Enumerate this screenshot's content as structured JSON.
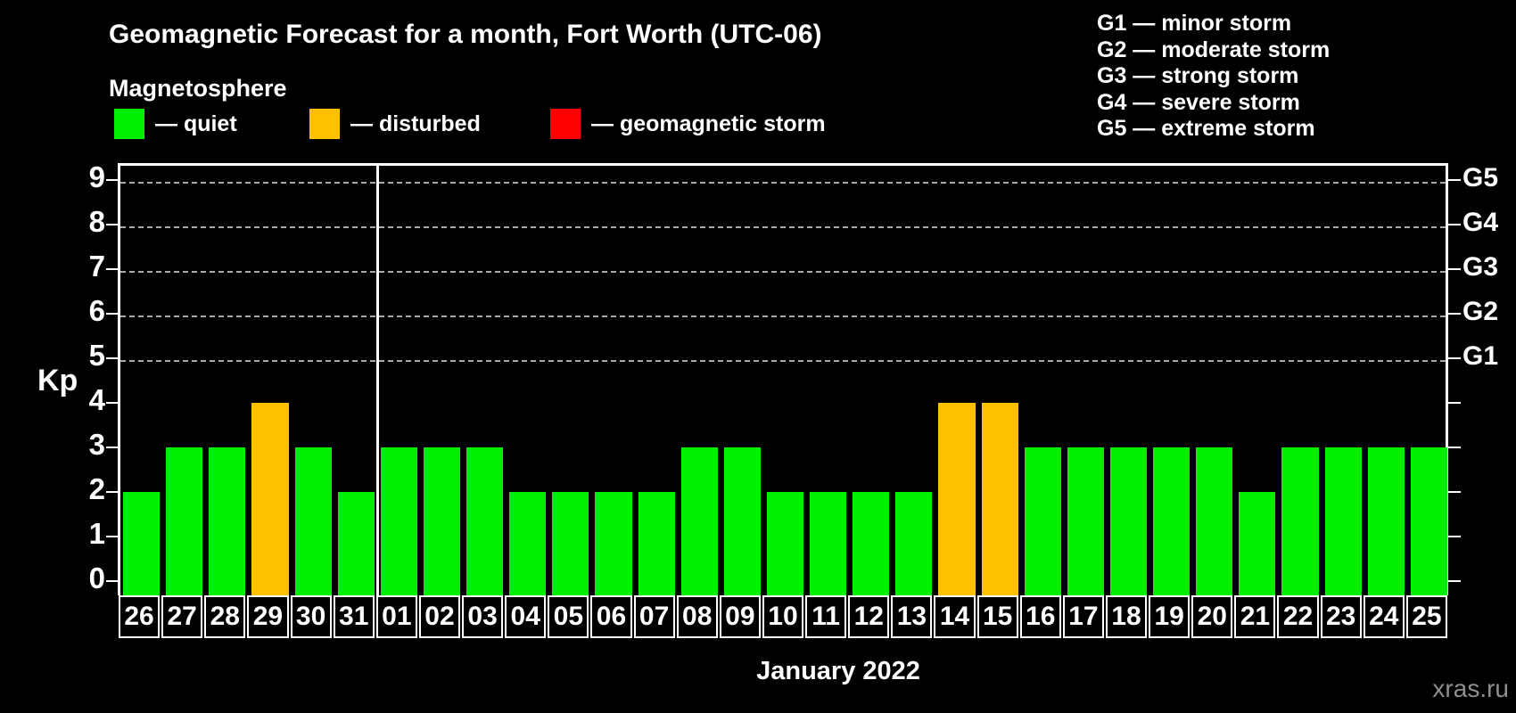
{
  "title": "Geomagnetic Forecast for a month, Fort Worth (UTC-06)",
  "subtitle": "Magnetosphere",
  "watermark": "xras.ru",
  "legend": {
    "items": [
      {
        "key": "quiet",
        "label": "— quiet",
        "color": "#00ee00"
      },
      {
        "key": "disturbed",
        "label": "— disturbed",
        "color": "#ffc000"
      },
      {
        "key": "storm",
        "label": "— geomagnetic storm",
        "color": "#ff0000"
      }
    ]
  },
  "g_scale_legend": [
    "G1 — minor storm",
    "G2 — moderate storm",
    "G3 — strong storm",
    "G4 — severe storm",
    "G5 — extreme storm"
  ],
  "chart_data": {
    "type": "bar",
    "title": "Geomagnetic Forecast for a month, Fort Worth (UTC-06)",
    "xlabel": "January 2022",
    "ylabel": "Kp",
    "ylim": [
      0,
      9.5
    ],
    "yticks": [
      0,
      1,
      2,
      3,
      4,
      5,
      6,
      7,
      8,
      9
    ],
    "gridlines_at": [
      5,
      6,
      7,
      8,
      9
    ],
    "grid": true,
    "legend_position": "top",
    "right_axis": [
      {
        "label": "G5",
        "kp": 9
      },
      {
        "label": "G4",
        "kp": 8
      },
      {
        "label": "G3",
        "kp": 7
      },
      {
        "label": "G2",
        "kp": 6
      },
      {
        "label": "G1",
        "kp": 5
      }
    ],
    "categories": [
      "26",
      "27",
      "28",
      "29",
      "30",
      "31",
      "01",
      "02",
      "03",
      "04",
      "05",
      "06",
      "07",
      "08",
      "09",
      "10",
      "11",
      "12",
      "13",
      "14",
      "15",
      "16",
      "17",
      "18",
      "19",
      "20",
      "21",
      "22",
      "23",
      "24",
      "25"
    ],
    "values": [
      2,
      3,
      3,
      4,
      3,
      2,
      3,
      3,
      3,
      2,
      2,
      2,
      2,
      3,
      3,
      2,
      2,
      2,
      2,
      4,
      4,
      3,
      3,
      3,
      3,
      3,
      2,
      3,
      3,
      3,
      3
    ],
    "statuses": [
      "quiet",
      "quiet",
      "quiet",
      "disturbed",
      "quiet",
      "quiet",
      "quiet",
      "quiet",
      "quiet",
      "quiet",
      "quiet",
      "quiet",
      "quiet",
      "quiet",
      "quiet",
      "quiet",
      "quiet",
      "quiet",
      "quiet",
      "disturbed",
      "disturbed",
      "quiet",
      "quiet",
      "quiet",
      "quiet",
      "quiet",
      "quiet",
      "quiet",
      "quiet",
      "quiet",
      "quiet"
    ],
    "status_colors": {
      "quiet": "#00ee00",
      "disturbed": "#ffc000",
      "storm": "#ff0000"
    },
    "month_separator_after_index": 5
  }
}
